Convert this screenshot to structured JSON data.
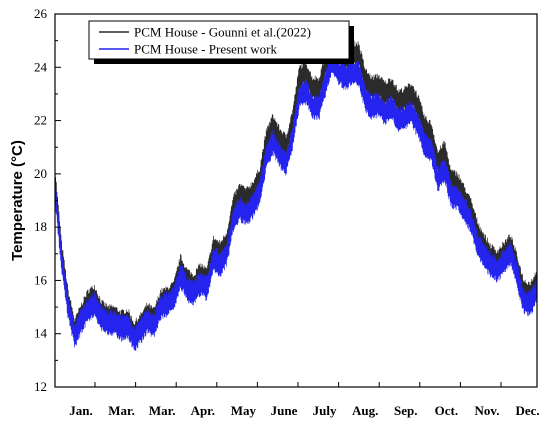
{
  "chart_data": {
    "type": "line",
    "title": "",
    "xlabel": "",
    "ylabel": "Temperature (°C)",
    "ylim": [
      12,
      26
    ],
    "yticks": [
      12,
      14,
      16,
      18,
      20,
      22,
      24,
      26
    ],
    "x_tick_labels": [
      "Jan.",
      "Mar.",
      "Mar.",
      "Apr.",
      "May",
      "June",
      "July",
      "Aug.",
      "Sep.",
      "Oct.",
      "Nov.",
      "Dec."
    ],
    "x_unit": "day of year",
    "xlim": [
      0,
      365
    ],
    "legend_position": "top-left",
    "series": [
      {
        "name": "PCM House - Gounni et al.(2022)",
        "color": "#2b2b2b",
        "band": 0.5,
        "x": [
          0,
          5,
          10,
          15,
          20,
          25,
          30,
          35,
          40,
          45,
          50,
          55,
          60,
          65,
          70,
          75,
          80,
          85,
          90,
          95,
          100,
          105,
          110,
          115,
          120,
          125,
          130,
          135,
          140,
          145,
          150,
          155,
          160,
          165,
          170,
          175,
          180,
          185,
          190,
          195,
          200,
          205,
          210,
          215,
          220,
          225,
          230,
          235,
          240,
          245,
          250,
          255,
          260,
          265,
          270,
          275,
          280,
          285,
          290,
          295,
          300,
          305,
          310,
          315,
          320,
          325,
          330,
          335,
          340,
          345,
          350,
          355,
          360,
          365
        ],
        "y": [
          19.8,
          17.0,
          15.2,
          14.1,
          14.7,
          15.2,
          15.4,
          14.8,
          14.6,
          14.6,
          14.4,
          14.5,
          14.0,
          14.3,
          14.7,
          14.5,
          15.2,
          15.3,
          15.5,
          16.5,
          16.0,
          15.8,
          16.2,
          16.0,
          17.2,
          17.0,
          17.4,
          18.7,
          19.2,
          19.0,
          19.3,
          19.8,
          21.2,
          21.8,
          21.3,
          21.0,
          22.0,
          23.6,
          23.8,
          23.2,
          23.2,
          24.1,
          25.0,
          24.5,
          24.3,
          24.5,
          24.5,
          23.5,
          23.2,
          23.3,
          23.0,
          23.2,
          22.7,
          22.8,
          23.0,
          22.5,
          21.7,
          21.5,
          20.4,
          20.8,
          19.7,
          19.6,
          19.1,
          18.6,
          17.8,
          17.3,
          16.9,
          16.7,
          17.0,
          17.3,
          16.5,
          15.6,
          15.5,
          16.0
        ]
      },
      {
        "name": "PCM House - Present work",
        "color": "#2424ee",
        "band": 0.5,
        "x": [
          0,
          5,
          10,
          15,
          20,
          25,
          30,
          35,
          40,
          45,
          50,
          55,
          60,
          65,
          70,
          75,
          80,
          85,
          90,
          95,
          100,
          105,
          110,
          115,
          120,
          125,
          130,
          135,
          140,
          145,
          150,
          155,
          160,
          165,
          170,
          175,
          180,
          185,
          190,
          195,
          200,
          205,
          210,
          215,
          220,
          225,
          230,
          235,
          240,
          245,
          250,
          255,
          260,
          265,
          270,
          275,
          280,
          285,
          290,
          295,
          300,
          305,
          310,
          315,
          320,
          325,
          330,
          335,
          340,
          345,
          350,
          355,
          360,
          365
        ],
        "y": [
          19.4,
          16.8,
          15.0,
          13.9,
          14.5,
          14.9,
          15.1,
          14.6,
          14.4,
          14.4,
          14.2,
          14.3,
          13.8,
          14.1,
          14.5,
          14.3,
          15.0,
          15.1,
          15.3,
          16.2,
          15.7,
          15.5,
          15.9,
          15.7,
          16.8,
          16.6,
          17.0,
          18.3,
          18.7,
          18.5,
          18.8,
          19.3,
          20.6,
          21.2,
          20.7,
          20.4,
          21.4,
          22.9,
          23.1,
          22.5,
          22.5,
          23.4,
          24.3,
          23.8,
          23.6,
          23.8,
          23.8,
          22.8,
          22.5,
          22.6,
          22.3,
          22.5,
          22.0,
          22.1,
          22.3,
          21.8,
          21.1,
          20.9,
          19.8,
          20.2,
          19.2,
          19.1,
          18.7,
          18.2,
          17.4,
          16.9,
          16.6,
          16.4,
          16.7,
          17.0,
          16.2,
          15.2,
          15.1,
          15.7
        ]
      }
    ]
  }
}
